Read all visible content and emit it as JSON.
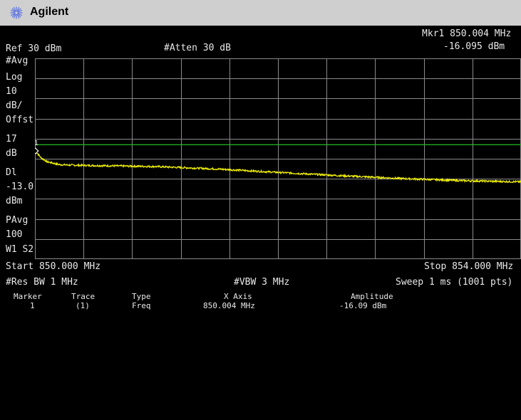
{
  "brand": {
    "name": "Agilent"
  },
  "header": {
    "marker_readout": "Mkr1  850.004 MHz",
    "marker_amplitude": "-16.095 dBm",
    "ref_level": "Ref 30 dBm",
    "attenuation": "#Atten 30 dB"
  },
  "left_annotations": {
    "avg": "#Avg",
    "scale_type": "Log",
    "scale_value": "10",
    "scale_unit": "dB/",
    "offset_label": "Offst",
    "offset_value": "17",
    "offset_unit": "dB",
    "display_line_label": "Dl",
    "display_line_value": "-13.0",
    "display_line_unit": "dBm",
    "power_avg": "PAvg",
    "power_avg_count": "100",
    "windows": "W1  S2"
  },
  "bottom": {
    "start": "Start 850.000 MHz",
    "stop": "Stop 854.000 MHz",
    "rbw": "#Res BW 1 MHz",
    "vbw": "#VBW 3 MHz",
    "sweep": "Sweep 1 ms (1001 pts)"
  },
  "marker_label": "1",
  "marker_table": {
    "headers": [
      "Marker",
      "Trace",
      "Type",
      "X Axis",
      "Amplitude"
    ],
    "rows": [
      [
        "1",
        "(1)",
        "Freq",
        "850.004 MHz",
        "-16.09 dBm"
      ]
    ]
  },
  "colors": {
    "trace": "#f2f200",
    "display_line": "#22c022",
    "grid": "#8a8a8a",
    "titlebar": "#cfcfcf",
    "logo": "#6a7ee0"
  },
  "chart_data": {
    "type": "line",
    "title": "",
    "xlabel": "",
    "ylabel": "",
    "x_unit": "MHz",
    "y_unit": "dBm",
    "xlim": [
      850.0,
      854.0
    ],
    "ylim": [
      -70,
      30
    ],
    "scale_db_per_div": 10,
    "display_line_dbm": -13.0,
    "grid": true,
    "series": [
      {
        "x": [
          850.004,
          850.05,
          850.1,
          850.2,
          850.3,
          850.5,
          851.0,
          851.5,
          852.0,
          852.5,
          853.0,
          853.5,
          854.0
        ],
        "y": [
          -16.1,
          -19.5,
          -21.5,
          -22.9,
          -23.2,
          -23.4,
          -23.9,
          -25.1,
          -26.8,
          -28.4,
          -29.8,
          -30.9,
          -31.5
        ]
      }
    ],
    "marker": {
      "x": 850.004,
      "y": -16.095
    }
  }
}
